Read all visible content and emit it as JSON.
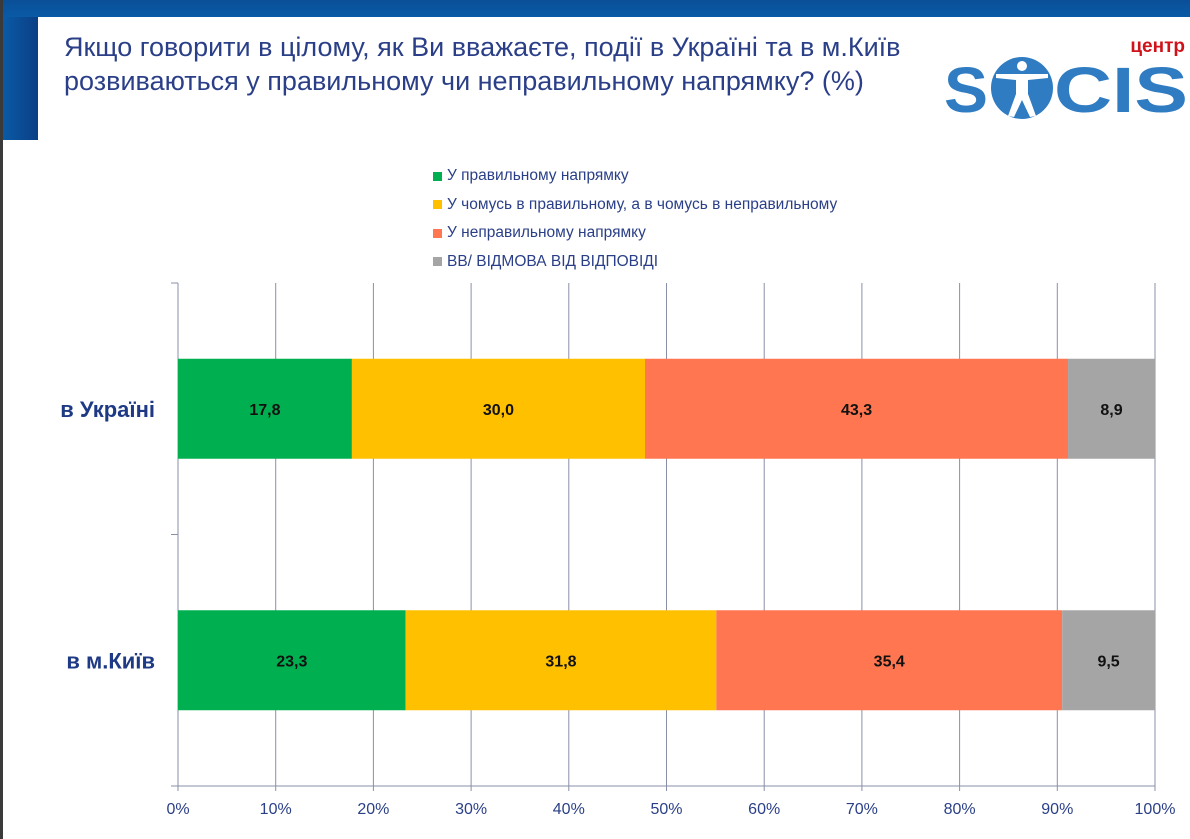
{
  "title": "Якщо говорити в цілому, як Ви вважаєте, події в Україні та в м.Київ розвиваються у правильному чи неправильному напрямку? (%)",
  "logo": {
    "top_text": "центр",
    "main_text": "SOCIS"
  },
  "chart_data": {
    "type": "bar",
    "orientation": "horizontal",
    "stacked": "100%",
    "categories": [
      "в Україні",
      "в м.Київ"
    ],
    "series": [
      {
        "name": "У правильному напрямку",
        "color": "#00b050",
        "values": [
          17.8,
          23.3
        ],
        "labels": [
          "17,8",
          "23,3"
        ]
      },
      {
        "name": "У чомусь в правильному, а в чомусь в неправильному",
        "color": "#ffc000",
        "values": [
          30.0,
          31.8
        ],
        "labels": [
          "30,0",
          "31,8"
        ]
      },
      {
        "name": "У неправильному напрямку",
        "color": "#ff7650",
        "values": [
          43.3,
          35.4
        ],
        "labels": [
          "43,3",
          "35,4"
        ]
      },
      {
        "name": "ВВ/ ВІДМОВА ВІД ВІДПОВІДІ",
        "color": "#a5a5a5",
        "values": [
          8.9,
          9.5
        ],
        "labels": [
          "8,9",
          "9,5"
        ]
      }
    ],
    "xticks": [
      "0%",
      "10%",
      "20%",
      "30%",
      "40%",
      "50%",
      "60%",
      "70%",
      "80%",
      "90%",
      "100%"
    ],
    "xlim": [
      0,
      100
    ],
    "grid": true,
    "legend": "top"
  }
}
